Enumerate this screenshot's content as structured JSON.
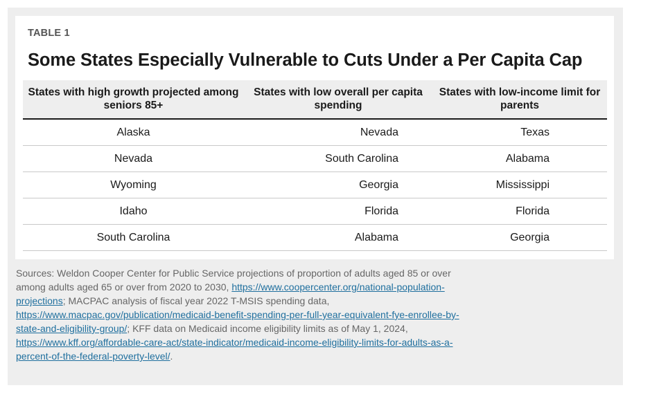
{
  "table_label": "TABLE 1",
  "title": "Some States Especially Vulnerable to Cuts Under a Per Capita Cap",
  "headers": [
    "States with high growth projected among seniors 85+",
    "States with low overall per capita spending",
    "States with low-income limit for parents"
  ],
  "rows": [
    [
      "Alaska",
      "Nevada",
      "Texas"
    ],
    [
      "Nevada",
      "South Carolina",
      "Alabama"
    ],
    [
      "Wyoming",
      "Georgia",
      "Mississippi"
    ],
    [
      "Idaho",
      "Florida",
      "Florida"
    ],
    [
      "South Carolina",
      "Alabama",
      "Georgia"
    ]
  ],
  "sources": {
    "text1": "Sources: Weldon Cooper Center for Public Service projections of proportion of adults aged 85 or over among adults aged 65 or over from 2020 to 2030, ",
    "link1": "https://www.coopercenter.org/national-population-projections",
    "text2": "; MACPAC analysis of fiscal year 2022 T-MSIS spending data, ",
    "link2": "https://www.macpac.gov/publication/medicaid-benefit-spending-per-full-year-equivalent-fye-enrollee-by-state-and-eligibility-group/",
    "text3": "; KFF data on Medicaid income eligibility limits as of May 1, 2024, ",
    "link3": "https://www.kff.org/affordable-care-act/state-indicator/medicaid-income-eligibility-limits-for-adults-as-a-percent-of-the-federal-poverty-level/",
    "text4": "."
  }
}
